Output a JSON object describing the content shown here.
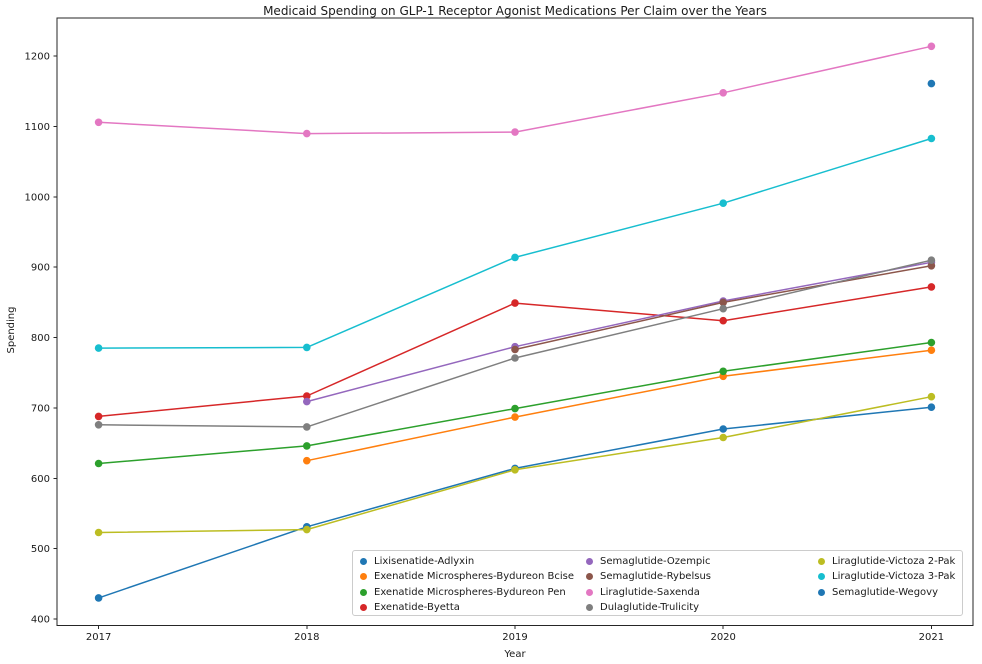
{
  "chart_data": {
    "type": "line",
    "title": "Medicaid Spending on GLP-1 Receptor Agonist Medications Per Claim over the Years",
    "xlabel": "Year",
    "ylabel": "Spending",
    "x": [
      2017,
      2018,
      2019,
      2020,
      2021
    ],
    "x_tick_labels": [
      "2017",
      "2018",
      "2019",
      "2020",
      "2021"
    ],
    "y_ticks": [
      400,
      500,
      600,
      700,
      800,
      900,
      1000,
      1100,
      1200
    ],
    "xlim": [
      2016.8,
      2021.2
    ],
    "ylim": [
      390.75,
      1254.25
    ],
    "grid": false,
    "marker": "dot",
    "legend_position": "lower right inside plot",
    "legend_columns": 3,
    "series": [
      {
        "name": "Lixisenatide-Adlyxin",
        "color": "#1f77b4",
        "values": [
          430,
          531,
          614,
          670,
          701
        ]
      },
      {
        "name": "Exenatide Microspheres-Bydureon Bcise",
        "color": "#ff7f0e",
        "values": [
          null,
          625,
          687,
          745,
          782
        ]
      },
      {
        "name": "Exenatide Microspheres-Bydureon Pen",
        "color": "#2ca02c",
        "values": [
          621,
          646,
          699,
          752,
          793
        ]
      },
      {
        "name": "Exenatide-Byetta",
        "color": "#d62728",
        "values": [
          688,
          717,
          849,
          824,
          872
        ]
      },
      {
        "name": "Semaglutide-Ozempic",
        "color": "#9467bd",
        "values": [
          null,
          709,
          787,
          852,
          907
        ]
      },
      {
        "name": "Semaglutide-Rybelsus",
        "color": "#8c564b",
        "values": [
          null,
          null,
          783,
          850,
          902
        ]
      },
      {
        "name": "Liraglutide-Saxenda",
        "color": "#e377c2",
        "values": [
          1106,
          1090,
          1092,
          1148,
          1214
        ]
      },
      {
        "name": "Dulaglutide-Trulicity",
        "color": "#7f7f7f",
        "values": [
          676,
          673,
          771,
          841,
          910
        ]
      },
      {
        "name": "Liraglutide-Victoza 2-Pak",
        "color": "#bcbd22",
        "values": [
          523,
          527,
          612,
          658,
          716
        ]
      },
      {
        "name": "Liraglutide-Victoza 3-Pak",
        "color": "#17becf",
        "values": [
          785,
          786,
          914,
          991,
          1083
        ]
      },
      {
        "name": "Semaglutide-Wegovy",
        "color": "#1f77b4",
        "values": [
          null,
          null,
          null,
          null,
          1161
        ]
      }
    ]
  }
}
